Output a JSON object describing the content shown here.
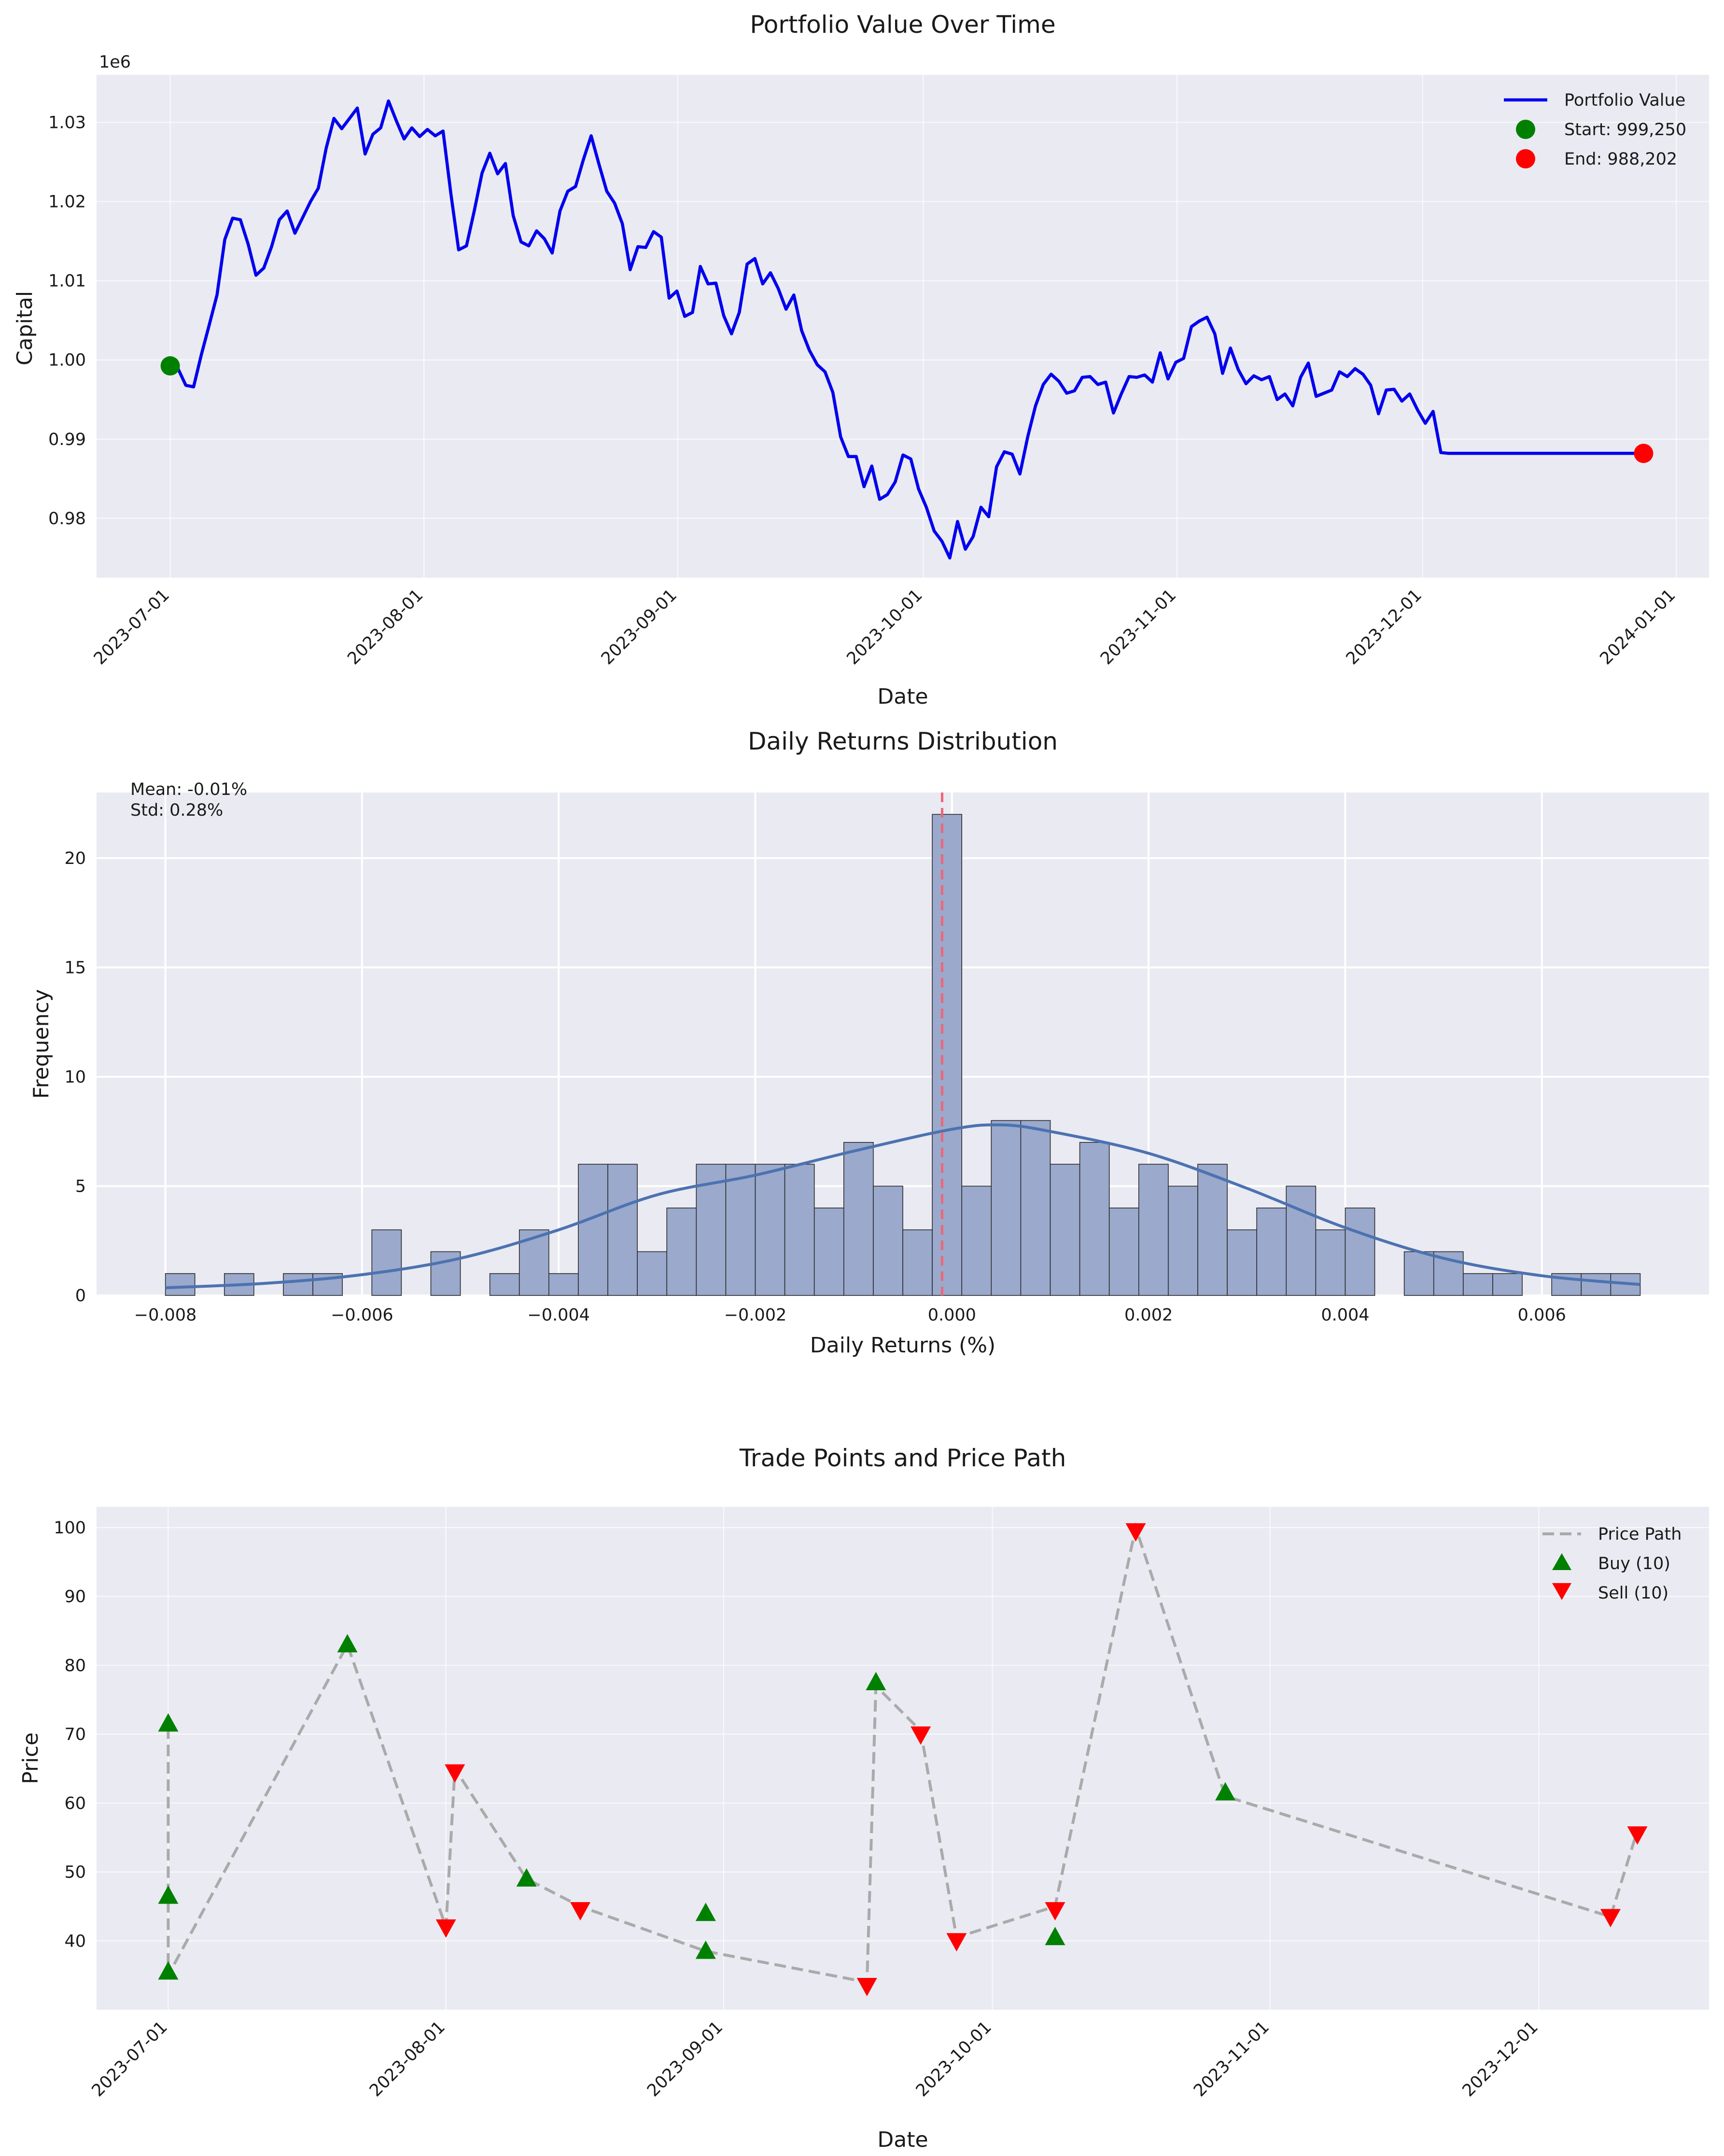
{
  "colors": {
    "axes_bg": "#eaeaf2",
    "grid": "#ffffff",
    "portfolio_line": "#0000ee",
    "start_marker": "#008000",
    "end_marker": "#ff0000",
    "hist_fill": "#9aa9cc",
    "hist_edge": "#2b2b2b",
    "kde_line": "#4c72b0",
    "mean_line": "#ee6677",
    "price_path": "#aaaaaa",
    "buy_marker": "#008000",
    "sell_marker": "#ff0000"
  },
  "chart_data": [
    {
      "type": "line",
      "title": "Portfolio Value Over Time",
      "xlabel": "Date",
      "ylabel": "Capital",
      "y_offset_label": "1e6",
      "x_tick_labels": [
        "2023-07-01",
        "2023-08-01",
        "2023-09-01",
        "2023-10-01",
        "2023-11-01",
        "2023-12-01",
        "2024-01-01"
      ],
      "y_tick_labels": [
        "0.98",
        "0.99",
        "1.00",
        "1.01",
        "1.02",
        "1.03"
      ],
      "xlim": [
        "2023-06-22",
        "2024-01-05"
      ],
      "ylim": [
        972500,
        1036000
      ],
      "legend_position": "upper right",
      "grid": true,
      "series": [
        {
          "name": "Portfolio Value",
          "x_start": "2023-07-01",
          "x_end": "2023-12-28",
          "values": [
            999250,
            998900,
            996800,
            996600,
            1000700,
            1004400,
            1008200,
            1015200,
            1017900,
            1017700,
            1014600,
            1010700,
            1011600,
            1014300,
            1017700,
            1018800,
            1016000,
            1018000,
            1020000,
            1021700,
            1026700,
            1030500,
            1029200,
            1030500,
            1031800,
            1026000,
            1028500,
            1029300,
            1032700,
            1030200,
            1027900,
            1029300,
            1028200,
            1029100,
            1028300,
            1028900,
            1021000,
            1013900,
            1014400,
            1018800,
            1023600,
            1026100,
            1023500,
            1024800,
            1018200,
            1014900,
            1014400,
            1016300,
            1015300,
            1013500,
            1018800,
            1021300,
            1021900,
            1025300,
            1028300,
            1024700,
            1021300,
            1019800,
            1017200,
            1011400,
            1014300,
            1014200,
            1016200,
            1015500,
            1007800,
            1008700,
            1005500,
            1006000,
            1011800,
            1009600,
            1009700,
            1005600,
            1003300,
            1006000,
            1012100,
            1012800,
            1009600,
            1011000,
            1009000,
            1006400,
            1008200,
            1003700,
            1001200,
            999400,
            998500,
            995900,
            990300,
            987800,
            987800,
            984000,
            986600,
            982400,
            983000,
            984600,
            988000,
            987500,
            983700,
            981400,
            978400,
            977100,
            975000,
            979600,
            976100,
            977700,
            981400,
            980200,
            986500,
            988400,
            988100,
            985600,
            990300,
            994200,
            996900,
            998200,
            997300,
            995800,
            996100,
            997800,
            997900,
            996900,
            997200,
            993300,
            995700,
            997900,
            997800,
            998100,
            997200,
            1000900,
            997600,
            999700,
            1000200,
            1004200,
            1004900,
            1005400,
            1003300,
            998300,
            1001500,
            998800,
            997000,
            998000,
            997500,
            997900,
            995000,
            995700,
            994200,
            997800,
            999600,
            995400,
            995800,
            996200,
            998500,
            997900,
            998900,
            998200,
            996800,
            993200,
            996200,
            996300,
            994800,
            995700,
            993700,
            992000,
            993500,
            988300,
            988202,
            988202,
            988202,
            988202,
            988202,
            988202,
            988202,
            988202,
            988202,
            988202,
            988202,
            988202,
            988202,
            988202,
            988202,
            988202,
            988202,
            988202,
            988202,
            988202,
            988202,
            988202,
            988202,
            988202,
            988202,
            988202
          ]
        }
      ],
      "markers": [
        {
          "name": "Start: 999,250",
          "x": "2023-07-01",
          "y": 999250
        },
        {
          "name": "End: 988,202",
          "x": "2023-12-28",
          "y": 988202
        }
      ]
    },
    {
      "type": "bar",
      "title": "Daily Returns Distribution",
      "xlabel": "Daily Returns (%)",
      "ylabel": "Frequency",
      "x_tick_labels": [
        "−0.008",
        "−0.006",
        "−0.004",
        "−0.002",
        "0.000",
        "0.002",
        "0.004",
        "0.006"
      ],
      "y_tick_labels": [
        "0",
        "5",
        "10",
        "15",
        "20"
      ],
      "xlim": [
        -0.0087,
        0.0077
      ],
      "ylim": [
        0,
        23
      ],
      "grid": true,
      "bin_start": -0.008,
      "bin_width": 0.0003,
      "counts": [
        1,
        0,
        1,
        0,
        1,
        1,
        0,
        3,
        0,
        2,
        0,
        1,
        3,
        1,
        6,
        6,
        2,
        4,
        6,
        6,
        6,
        6,
        4,
        7,
        5,
        3,
        22,
        5,
        8,
        8,
        6,
        7,
        4,
        6,
        5,
        6,
        3,
        4,
        5,
        3,
        4,
        0,
        2,
        2,
        1,
        1,
        0,
        1,
        1,
        1
      ],
      "kde": [
        [
          -0.008,
          0.35
        ],
        [
          -0.007,
          0.55
        ],
        [
          -0.006,
          0.95
        ],
        [
          -0.005,
          1.7
        ],
        [
          -0.004,
          3.0
        ],
        [
          -0.003,
          4.6
        ],
        [
          -0.002,
          5.5
        ],
        [
          -0.001,
          6.6
        ],
        [
          0.0,
          7.6
        ],
        [
          0.0005,
          7.8
        ],
        [
          0.001,
          7.5
        ],
        [
          0.002,
          6.5
        ],
        [
          0.003,
          4.9
        ],
        [
          0.004,
          3.1
        ],
        [
          0.005,
          1.7
        ],
        [
          0.006,
          0.9
        ],
        [
          0.007,
          0.5
        ]
      ],
      "mean_value": -0.0001,
      "annotations": [
        "Mean: -0.01%",
        "Std: 0.28%"
      ]
    },
    {
      "type": "scatter",
      "title": "Trade Points and Price Path",
      "xlabel": "Date",
      "ylabel": "Price",
      "x_tick_labels": [
        "2023-07-01",
        "2023-08-01",
        "2023-09-01",
        "2023-10-01",
        "2023-11-01",
        "2023-12-01"
      ],
      "y_tick_labels": [
        "40",
        "50",
        "60",
        "70",
        "80",
        "90",
        "100"
      ],
      "xlim": [
        "2023-06-23",
        "2023-12-20"
      ],
      "ylim": [
        30,
        103
      ],
      "legend_position": "upper right",
      "grid": true,
      "series": [
        {
          "name": "Price Path",
          "x": [
            "2023-07-01",
            "2023-07-01",
            "2023-07-21",
            "2023-08-01",
            "2023-08-02",
            "2023-08-10",
            "2023-08-16",
            "2023-08-30",
            "2023-09-17",
            "2023-09-18",
            "2023-09-23",
            "2023-09-27",
            "2023-10-08",
            "2023-10-17",
            "2023-10-27",
            "2023-12-09",
            "2023-12-12"
          ],
          "y": [
            71,
            35,
            83,
            42,
            65,
            49,
            45,
            38.5,
            34,
            77,
            70.5,
            40.5,
            45,
            100,
            61,
            43.5,
            56
          ]
        },
        {
          "name": "Buy (10)",
          "x": [
            "2023-07-01",
            "2023-07-01",
            "2023-07-01",
            "2023-07-21",
            "2023-08-10",
            "2023-08-30",
            "2023-08-30",
            "2023-09-18",
            "2023-10-08",
            "2023-10-27"
          ],
          "y": [
            71.5,
            46.5,
            35.5,
            83,
            49,
            38.5,
            44,
            77.5,
            40.5,
            61.5
          ]
        },
        {
          "name": "Sell (10)",
          "x": [
            "2023-08-01",
            "2023-08-02",
            "2023-08-16",
            "2023-09-17",
            "2023-09-23",
            "2023-09-27",
            "2023-10-08",
            "2023-10-17",
            "2023-12-09",
            "2023-12-12"
          ],
          "y": [
            42,
            64.5,
            44.5,
            33.5,
            70,
            40,
            44.5,
            99.5,
            43.5,
            55.5
          ]
        }
      ]
    }
  ]
}
